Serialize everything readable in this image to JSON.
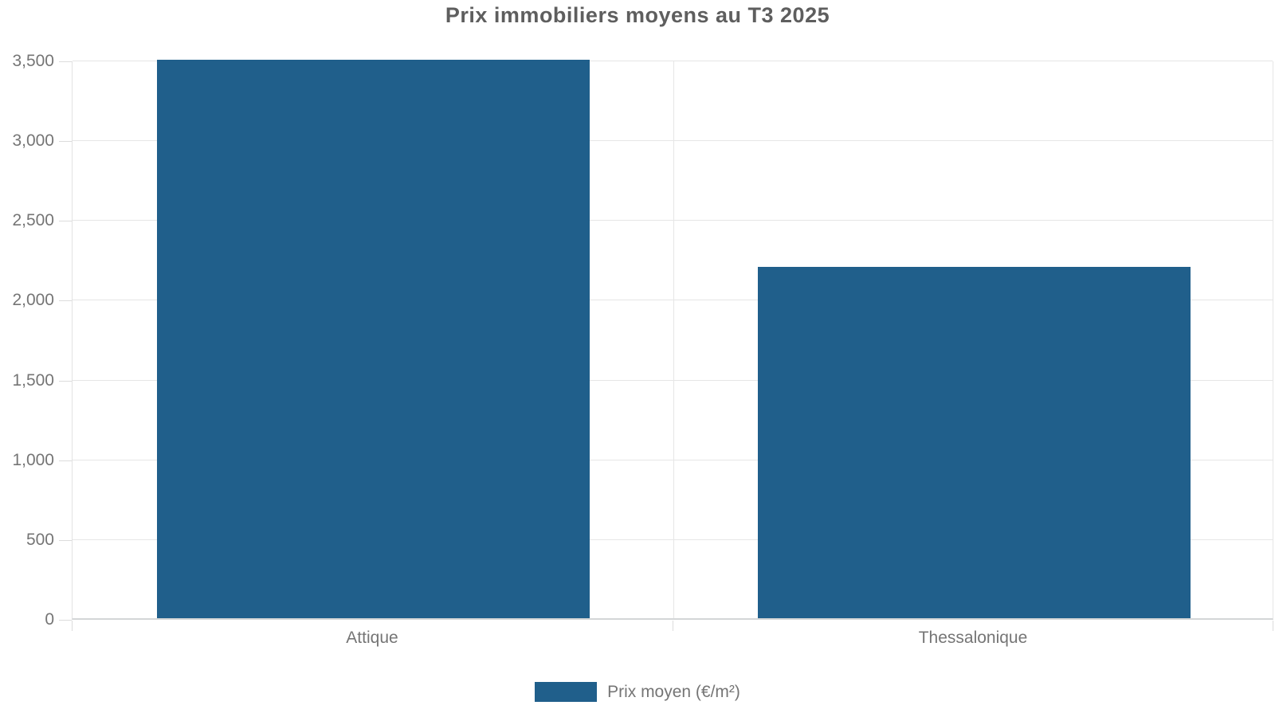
{
  "chart_data": {
    "type": "bar",
    "title": "Prix immobiliers moyens au T3 2025",
    "categories": [
      "Attique",
      "Thessalonique"
    ],
    "series": [
      {
        "name": "Prix moyen (€/m²)",
        "values": [
          3500,
          2200
        ]
      }
    ],
    "xlabel": "",
    "ylabel": "",
    "ylim": [
      0,
      3500
    ],
    "y_tick_step": 500,
    "y_tick_labels": [
      "0",
      "500",
      "1,000",
      "1,500",
      "2,000",
      "2,500",
      "3,000",
      "3,500"
    ],
    "grid": true,
    "legend_position": "bottom",
    "colors": {
      "bar": "#205F8B",
      "gridline": "#e6e6e6",
      "axis_line": "#d4d6d7",
      "title_text": "#5e5e5e",
      "axis_text": "#757575"
    }
  }
}
